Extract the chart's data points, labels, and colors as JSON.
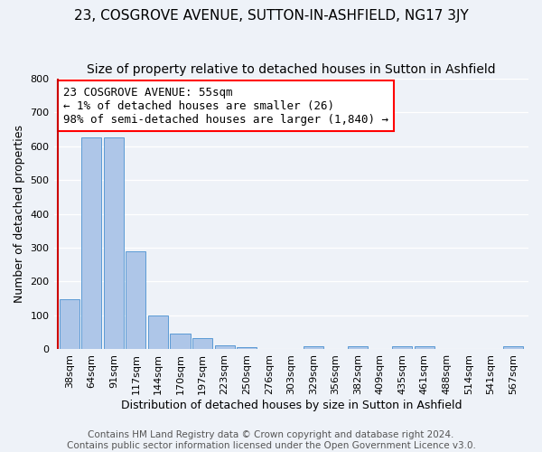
{
  "title": "23, COSGROVE AVENUE, SUTTON-IN-ASHFIELD, NG17 3JY",
  "subtitle": "Size of property relative to detached houses in Sutton in Ashfield",
  "xlabel": "Distribution of detached houses by size in Sutton in Ashfield",
  "ylabel": "Number of detached properties",
  "categories": [
    "38sqm",
    "64sqm",
    "91sqm",
    "117sqm",
    "144sqm",
    "170sqm",
    "197sqm",
    "223sqm",
    "250sqm",
    "276sqm",
    "303sqm",
    "329sqm",
    "356sqm",
    "382sqm",
    "409sqm",
    "435sqm",
    "461sqm",
    "488sqm",
    "514sqm",
    "541sqm",
    "567sqm"
  ],
  "values": [
    148,
    625,
    625,
    290,
    100,
    46,
    32,
    12,
    7,
    0,
    0,
    8,
    0,
    8,
    0,
    8,
    8,
    0,
    0,
    0,
    8
  ],
  "bar_color": "#aec6e8",
  "bar_edge_color": "#5b9bd5",
  "red_line_color": "#cc0000",
  "annotation_box_text": "23 COSGROVE AVENUE: 55sqm\n← 1% of detached houses are smaller (26)\n98% of semi-detached houses are larger (1,840) →",
  "ylim": [
    0,
    800
  ],
  "yticks": [
    0,
    100,
    200,
    300,
    400,
    500,
    600,
    700,
    800
  ],
  "footer1": "Contains HM Land Registry data © Crown copyright and database right 2024.",
  "footer2": "Contains public sector information licensed under the Open Government Licence v3.0.",
  "bg_color": "#eef2f8",
  "grid_color": "#ffffff",
  "title_fontsize": 11,
  "subtitle_fontsize": 10,
  "axis_label_fontsize": 9,
  "tick_fontsize": 8,
  "annotation_fontsize": 9,
  "footer_fontsize": 7.5
}
